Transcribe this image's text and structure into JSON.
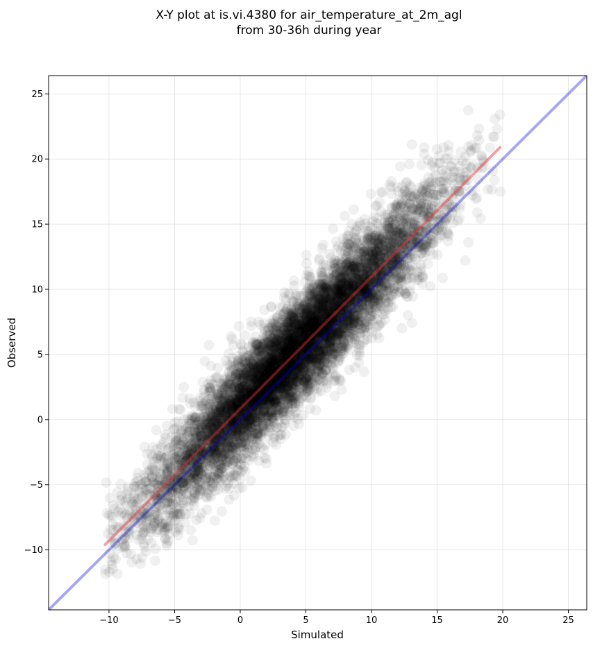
{
  "chart_data": {
    "type": "scatter",
    "title_line1": "X-Y plot at is.vi.4380 for air_temperature_at_2m_agl",
    "title_line2": "from 30-36h during year",
    "xlabel": "Simulated",
    "ylabel": "Observed",
    "xlim": [
      -14.6,
      26.4
    ],
    "ylim": [
      -14.6,
      26.4
    ],
    "x_ticks": [
      -10,
      -5,
      0,
      5,
      10,
      15,
      20,
      25
    ],
    "y_ticks": [
      -10,
      -5,
      0,
      5,
      10,
      15,
      20,
      25
    ],
    "tick_labels": [
      "−10",
      "−5",
      "0",
      "5",
      "10",
      "15",
      "20",
      "25"
    ],
    "grid": true,
    "point_color": "#000000",
    "point_alpha": 0.06,
    "point_count_approx": 8000,
    "point_cloud": {
      "x_range": [
        -10.4,
        19.9
      ],
      "y_range": [
        -12.8,
        24.5
      ],
      "fit_slope": 1.02,
      "fit_intercept": 0.9,
      "residual_sd": 2.0
    },
    "series": [
      {
        "kind": "identity",
        "color": "#0000dd",
        "alpha": 0.35,
        "x": [
          -14.6,
          26.4
        ],
        "y": [
          -14.6,
          26.4
        ]
      },
      {
        "kind": "regression",
        "color": "#e03030",
        "alpha": 0.45,
        "x": [
          -10.3,
          19.8
        ],
        "y": [
          -9.6,
          20.9
        ]
      }
    ]
  }
}
